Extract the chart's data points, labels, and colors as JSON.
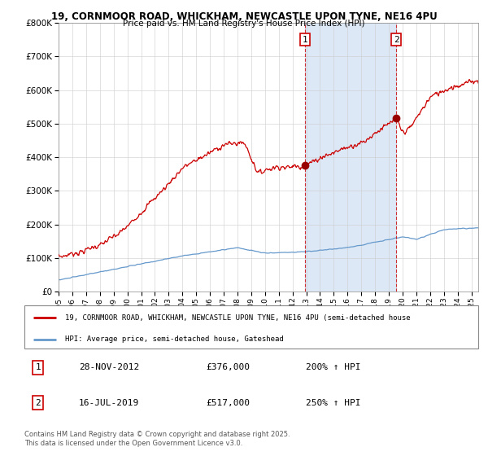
{
  "title1": "19, CORNMOOR ROAD, WHICKHAM, NEWCASTLE UPON TYNE, NE16 4PU",
  "title2": "Price paid vs. HM Land Registry's House Price Index (HPI)",
  "legend1": "19, CORNMOOR ROAD, WHICKHAM, NEWCASTLE UPON TYNE, NE16 4PU (semi-detached house",
  "legend2": "HPI: Average price, semi-detached house, Gateshead",
  "footer": "Contains HM Land Registry data © Crown copyright and database right 2025.\nThis data is licensed under the Open Government Licence v3.0.",
  "sale1_date": "28-NOV-2012",
  "sale1_price": 376000,
  "sale1_pct": "200% ↑ HPI",
  "sale2_date": "16-JUL-2019",
  "sale2_price": 517000,
  "sale2_pct": "250% ↑ HPI",
  "sale1_x": 2012.91,
  "sale2_x": 2019.54,
  "shade_color": "#dce8f5",
  "red_color": "#cc0000",
  "blue_color": "#6699cc",
  "ylim": [
    0,
    800000
  ],
  "xlim": [
    1995.0,
    2025.5
  ],
  "yticks": [
    0,
    100000,
    200000,
    300000,
    400000,
    500000,
    600000,
    700000,
    800000
  ],
  "xticks": [
    1995,
    1996,
    1997,
    1998,
    1999,
    2000,
    2001,
    2002,
    2003,
    2004,
    2005,
    2006,
    2007,
    2008,
    2009,
    2010,
    2011,
    2012,
    2013,
    2014,
    2015,
    2016,
    2017,
    2018,
    2019,
    2020,
    2021,
    2022,
    2023,
    2024,
    2025
  ]
}
